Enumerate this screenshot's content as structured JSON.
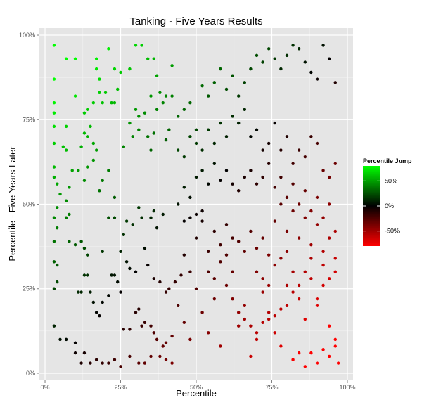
{
  "chart_data": {
    "type": "scatter",
    "title": "Tanking - Five Years Results",
    "xlabel": "Percentile",
    "ylabel": "Percentile - Five Years Later",
    "xlim": [
      0,
      100
    ],
    "ylim": [
      0,
      100
    ],
    "x_ticks": [
      0,
      25,
      50,
      75,
      100
    ],
    "y_ticks": [
      0,
      25,
      50,
      75,
      100
    ],
    "x_tick_labels": [
      "0%",
      "25%",
      "50%",
      "75%",
      "100%"
    ],
    "y_tick_labels": [
      "0%",
      "25%",
      "50%",
      "75%",
      "100%"
    ],
    "grid": true,
    "legend": {
      "title": "Percentile Jump",
      "placement": "right",
      "labels": [
        "50%",
        "0%",
        "-50%"
      ],
      "values": [
        50,
        0,
        -50
      ],
      "range": [
        -80,
        80
      ],
      "colors": {
        "high": "#00ff00",
        "mid": "#000000",
        "low": "#ff0000"
      }
    },
    "color_encoding": "y - x",
    "points": [
      [
        3,
        97
      ],
      [
        7,
        93
      ],
      [
        10,
        93
      ],
      [
        17,
        93
      ],
      [
        21,
        96
      ],
      [
        32,
        97
      ],
      [
        34,
        93
      ],
      [
        36,
        93
      ],
      [
        42,
        91
      ],
      [
        3,
        87
      ],
      [
        10,
        82
      ],
      [
        17,
        90
      ],
      [
        18,
        87
      ],
      [
        23,
        90
      ],
      [
        25,
        89
      ],
      [
        28,
        90
      ],
      [
        30,
        97
      ],
      [
        37,
        88
      ],
      [
        40,
        82
      ],
      [
        35,
        82
      ],
      [
        3,
        80
      ],
      [
        3,
        77
      ],
      [
        3,
        73
      ],
      [
        7,
        73
      ],
      [
        13,
        77
      ],
      [
        14,
        78
      ],
      [
        16,
        80
      ],
      [
        18,
        83
      ],
      [
        19,
        80
      ],
      [
        20,
        83
      ],
      [
        22,
        80
      ],
      [
        23,
        80
      ],
      [
        24,
        84
      ],
      [
        30,
        78
      ],
      [
        31,
        76
      ],
      [
        33,
        77
      ],
      [
        37,
        78
      ],
      [
        39,
        80
      ],
      [
        38,
        83
      ],
      [
        42,
        82
      ],
      [
        3,
        68
      ],
      [
        6,
        67
      ],
      [
        7,
        66
      ],
      [
        13,
        71
      ],
      [
        14,
        70
      ],
      [
        15,
        73
      ],
      [
        16,
        68
      ],
      [
        16,
        63
      ],
      [
        17,
        66
      ],
      [
        14,
        61
      ],
      [
        13,
        57
      ],
      [
        3,
        61
      ],
      [
        3,
        58
      ],
      [
        4,
        56
      ],
      [
        5,
        53
      ],
      [
        8,
        55
      ],
      [
        9,
        60
      ],
      [
        11,
        60
      ],
      [
        12,
        67
      ],
      [
        18,
        54
      ],
      [
        19,
        57
      ],
      [
        21,
        60
      ],
      [
        26,
        67
      ],
      [
        28,
        74
      ],
      [
        29,
        70
      ],
      [
        31,
        72
      ],
      [
        34,
        70
      ],
      [
        35,
        66
      ],
      [
        36,
        71
      ],
      [
        40,
        69
      ],
      [
        41,
        72
      ],
      [
        3,
        46
      ],
      [
        4,
        49
      ],
      [
        4,
        43
      ],
      [
        7,
        46
      ],
      [
        8,
        47
      ],
      [
        7,
        51
      ],
      [
        8,
        39
      ],
      [
        10,
        38
      ],
      [
        12,
        39
      ],
      [
        13,
        37
      ],
      [
        14,
        35
      ],
      [
        19,
        36
      ],
      [
        21,
        46
      ],
      [
        23,
        46
      ],
      [
        23,
        52
      ],
      [
        26,
        41
      ],
      [
        27,
        45
      ],
      [
        29,
        44
      ],
      [
        31,
        49
      ],
      [
        32,
        46
      ],
      [
        35,
        46
      ],
      [
        36,
        48
      ],
      [
        37,
        43
      ],
      [
        39,
        47
      ],
      [
        3,
        39
      ],
      [
        3,
        33
      ],
      [
        4,
        32
      ],
      [
        4,
        27
      ],
      [
        3,
        25
      ],
      [
        3,
        14
      ],
      [
        5,
        10
      ],
      [
        7,
        10
      ],
      [
        11,
        24
      ],
      [
        12,
        24
      ],
      [
        13,
        29
      ],
      [
        14,
        29
      ],
      [
        15,
        24
      ],
      [
        16,
        21
      ],
      [
        17,
        18
      ],
      [
        18,
        17
      ],
      [
        19,
        21
      ],
      [
        21,
        23
      ],
      [
        22,
        29
      ],
      [
        23,
        29
      ],
      [
        24,
        27
      ],
      [
        25,
        24
      ],
      [
        26,
        13
      ],
      [
        28,
        13
      ],
      [
        30,
        18
      ],
      [
        31,
        19
      ],
      [
        32,
        14
      ],
      [
        33,
        15
      ],
      [
        35,
        14
      ],
      [
        36,
        12
      ],
      [
        37,
        10
      ],
      [
        39,
        8
      ],
      [
        40,
        9
      ],
      [
        42,
        11
      ],
      [
        10,
        9
      ],
      [
        10,
        6
      ],
      [
        12,
        3
      ],
      [
        13,
        6
      ],
      [
        15,
        3
      ],
      [
        17,
        4
      ],
      [
        19,
        3
      ],
      [
        21,
        3
      ],
      [
        23,
        4
      ],
      [
        25,
        2
      ],
      [
        28,
        5
      ],
      [
        31,
        3
      ],
      [
        33,
        3
      ],
      [
        35,
        5
      ],
      [
        38,
        5
      ],
      [
        40,
        4
      ],
      [
        42,
        3
      ],
      [
        25,
        36
      ],
      [
        27,
        33
      ],
      [
        28,
        31
      ],
      [
        30,
        30
      ],
      [
        33,
        37
      ],
      [
        34,
        32
      ],
      [
        36,
        28
      ],
      [
        38,
        27
      ],
      [
        40,
        24
      ],
      [
        41,
        25
      ],
      [
        43,
        27
      ],
      [
        45,
        29
      ],
      [
        46,
        35
      ],
      [
        48,
        30
      ],
      [
        50,
        40
      ],
      [
        52,
        45
      ],
      [
        54,
        36
      ],
      [
        56,
        42
      ],
      [
        58,
        38
      ],
      [
        60,
        44
      ],
      [
        62,
        40
      ],
      [
        64,
        39
      ],
      [
        66,
        36
      ],
      [
        68,
        42
      ],
      [
        70,
        37
      ],
      [
        72,
        40
      ],
      [
        74,
        35
      ],
      [
        44,
        50
      ],
      [
        46,
        55
      ],
      [
        48,
        52
      ],
      [
        50,
        58
      ],
      [
        52,
        60
      ],
      [
        54,
        56
      ],
      [
        56,
        62
      ],
      [
        58,
        57
      ],
      [
        60,
        60
      ],
      [
        62,
        56
      ],
      [
        64,
        54
      ],
      [
        66,
        58
      ],
      [
        68,
        60
      ],
      [
        70,
        56
      ],
      [
        72,
        58
      ],
      [
        74,
        62
      ],
      [
        44,
        76
      ],
      [
        46,
        78
      ],
      [
        48,
        80
      ],
      [
        50,
        72
      ],
      [
        52,
        85
      ],
      [
        54,
        82
      ],
      [
        56,
        86
      ],
      [
        58,
        90
      ],
      [
        60,
        84
      ],
      [
        62,
        88
      ],
      [
        64,
        82
      ],
      [
        66,
        86
      ],
      [
        68,
        90
      ],
      [
        70,
        94
      ],
      [
        72,
        92
      ],
      [
        74,
        96
      ],
      [
        76,
        93
      ],
      [
        78,
        90
      ],
      [
        80,
        94
      ],
      [
        82,
        97
      ],
      [
        84,
        96
      ],
      [
        86,
        92
      ],
      [
        88,
        89
      ],
      [
        90,
        87
      ],
      [
        92,
        97
      ],
      [
        94,
        93
      ],
      [
        96,
        86
      ],
      [
        44,
        66
      ],
      [
        46,
        64
      ],
      [
        48,
        70
      ],
      [
        50,
        68
      ],
      [
        52,
        66
      ],
      [
        54,
        72
      ],
      [
        56,
        68
      ],
      [
        58,
        74
      ],
      [
        60,
        70
      ],
      [
        62,
        76
      ],
      [
        64,
        74
      ],
      [
        66,
        78
      ],
      [
        68,
        70
      ],
      [
        70,
        72
      ],
      [
        72,
        66
      ],
      [
        74,
        68
      ],
      [
        76,
        74
      ],
      [
        78,
        66
      ],
      [
        80,
        70
      ],
      [
        82,
        62
      ],
      [
        84,
        66
      ],
      [
        86,
        64
      ],
      [
        88,
        70
      ],
      [
        90,
        68
      ],
      [
        92,
        60
      ],
      [
        94,
        58
      ],
      [
        96,
        62
      ],
      [
        44,
        20
      ],
      [
        46,
        15
      ],
      [
        48,
        10
      ],
      [
        50,
        25
      ],
      [
        52,
        18
      ],
      [
        54,
        12
      ],
      [
        56,
        22
      ],
      [
        58,
        8
      ],
      [
        60,
        26
      ],
      [
        62,
        30
      ],
      [
        64,
        14
      ],
      [
        66,
        20
      ],
      [
        68,
        5
      ],
      [
        70,
        10
      ],
      [
        72,
        24
      ],
      [
        74,
        18
      ],
      [
        76,
        12
      ],
      [
        78,
        8
      ],
      [
        80,
        26
      ],
      [
        82,
        30
      ],
      [
        84,
        22
      ],
      [
        86,
        16
      ],
      [
        88,
        28
      ],
      [
        90,
        20
      ],
      [
        92,
        32
      ],
      [
        94,
        14
      ],
      [
        96,
        10
      ],
      [
        97,
        3
      ],
      [
        76,
        45
      ],
      [
        78,
        50
      ],
      [
        80,
        42
      ],
      [
        82,
        48
      ],
      [
        84,
        40
      ],
      [
        86,
        46
      ],
      [
        88,
        38
      ],
      [
        90,
        44
      ],
      [
        92,
        36
      ],
      [
        94,
        40
      ],
      [
        96,
        34
      ],
      [
        76,
        55
      ],
      [
        78,
        58
      ],
      [
        80,
        52
      ],
      [
        82,
        56
      ],
      [
        84,
        50
      ],
      [
        86,
        54
      ],
      [
        88,
        48
      ],
      [
        90,
        52
      ],
      [
        92,
        46
      ],
      [
        94,
        50
      ],
      [
        96,
        42
      ],
      [
        70,
        30
      ],
      [
        72,
        28
      ],
      [
        74,
        26
      ],
      [
        76,
        32
      ],
      [
        78,
        34
      ],
      [
        80,
        36
      ],
      [
        82,
        24
      ],
      [
        84,
        26
      ],
      [
        86,
        30
      ],
      [
        88,
        34
      ],
      [
        90,
        22
      ],
      [
        92,
        26
      ],
      [
        94,
        28
      ],
      [
        96,
        30
      ],
      [
        46,
        45
      ],
      [
        48,
        46
      ],
      [
        50,
        47
      ],
      [
        52,
        48
      ],
      [
        54,
        30
      ],
      [
        56,
        28
      ],
      [
        58,
        33
      ],
      [
        60,
        35
      ],
      [
        62,
        22
      ],
      [
        64,
        18
      ],
      [
        66,
        16
      ],
      [
        68,
        14
      ],
      [
        70,
        12
      ],
      [
        72,
        15
      ],
      [
        74,
        16
      ],
      [
        76,
        17
      ],
      [
        78,
        19
      ],
      [
        80,
        20
      ],
      [
        82,
        4
      ],
      [
        84,
        6
      ],
      [
        86,
        2
      ],
      [
        88,
        6
      ],
      [
        90,
        3
      ],
      [
        92,
        7
      ],
      [
        94,
        5
      ],
      [
        96,
        8
      ]
    ]
  }
}
